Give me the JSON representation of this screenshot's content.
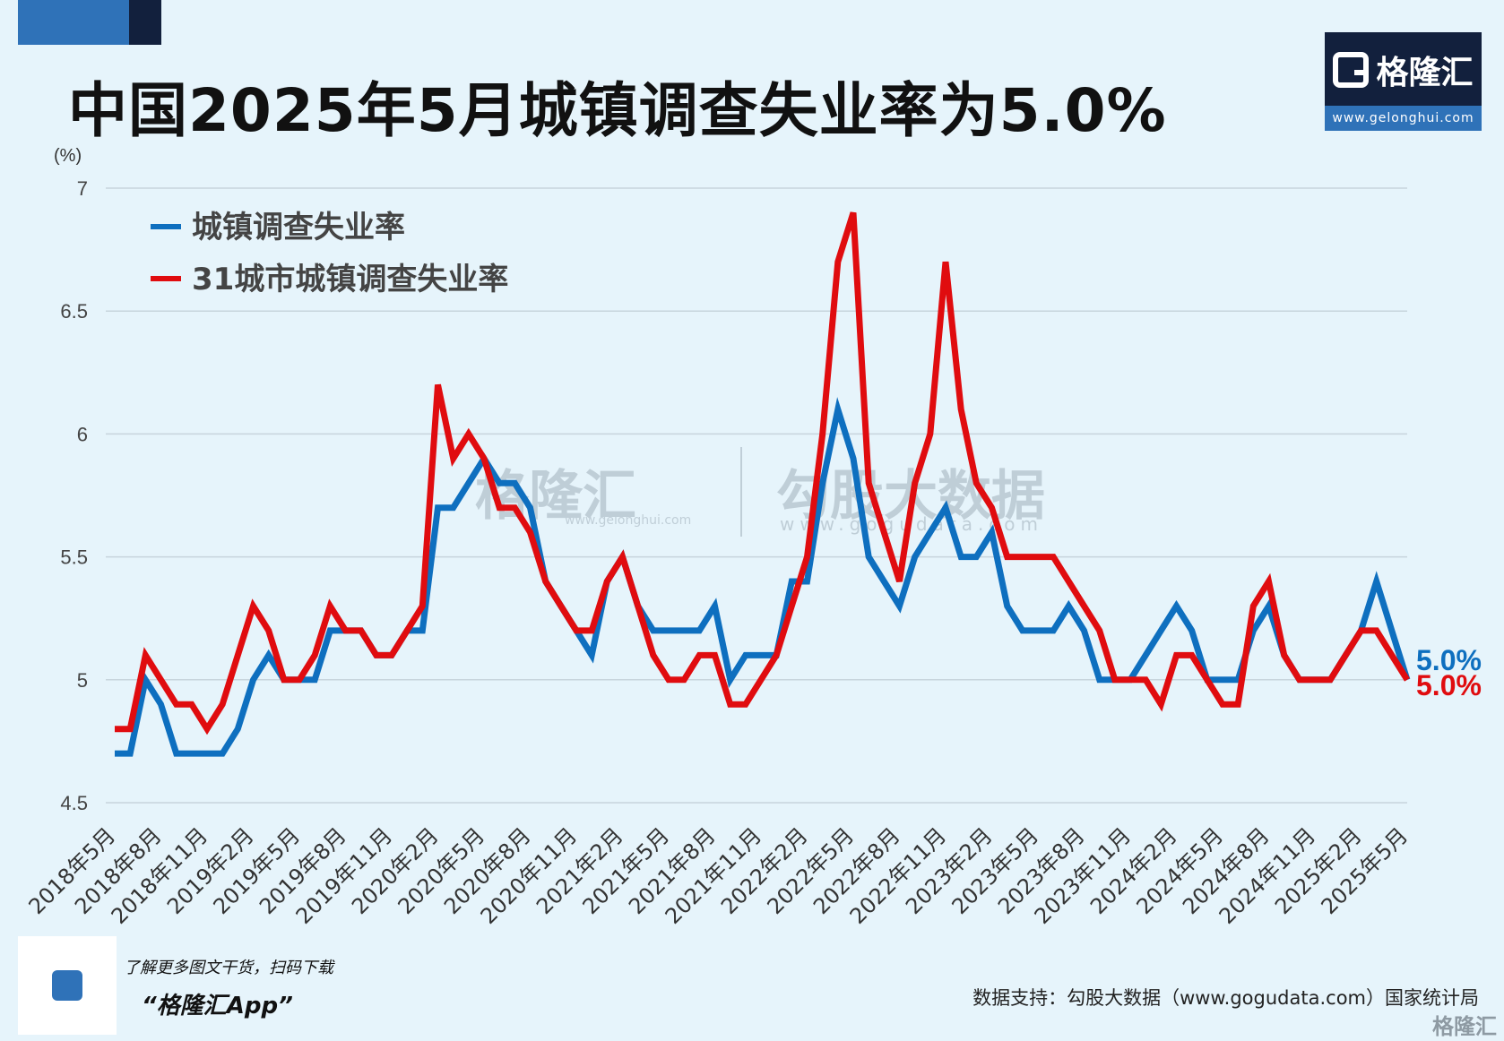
{
  "title": "中国2025年5月城镇调查失业率为5.0%",
  "logo": {
    "name": "格隆汇",
    "url": "www.gelonghui.com"
  },
  "watermark": {
    "brand_a": "格隆汇",
    "brand_a_url": "www.gelonghui.com",
    "brand_b": "勾股大数据",
    "brand_b_url": "www.gogudata.com"
  },
  "footer": {
    "tip": "了解更多图文干货，扫码下载",
    "app": "“格隆汇App”",
    "source": "数据支持：勾股大数据（www.gogudata.com）国家统计局",
    "brand": "格隆汇"
  },
  "colors": {
    "blue": "#0e6fbf",
    "red": "#e00c0f",
    "grid": "#c7d4dc",
    "background": "#e6f4fb"
  },
  "chart_data": {
    "type": "line",
    "unit_label": "(%)",
    "ylim": [
      4.5,
      7
    ],
    "yticks": [
      4.5,
      5,
      5.5,
      6,
      6.5,
      7
    ],
    "grid": true,
    "legend_position": "top-left",
    "x_tick_labels": [
      "2018年5月",
      "2018年8月",
      "2018年11月",
      "2019年2月",
      "2019年5月",
      "2019年8月",
      "2019年11月",
      "2020年2月",
      "2020年5月",
      "2020年8月",
      "2020年11月",
      "2021年2月",
      "2021年5月",
      "2021年8月",
      "2021年11月",
      "2022年2月",
      "2022年5月",
      "2022年8月",
      "2022年11月",
      "2023年2月",
      "2023年5月",
      "2023年8月",
      "2023年11月",
      "2024年2月",
      "2024年5月",
      "2024年8月",
      "2024年11月",
      "2025年2月",
      "2025年5月"
    ],
    "x": [
      "2018-05",
      "2018-06",
      "2018-07",
      "2018-08",
      "2018-09",
      "2018-10",
      "2018-11",
      "2018-12",
      "2019-01",
      "2019-02",
      "2019-03",
      "2019-04",
      "2019-05",
      "2019-06",
      "2019-07",
      "2019-08",
      "2019-09",
      "2019-10",
      "2019-11",
      "2019-12",
      "2020-01",
      "2020-02",
      "2020-03",
      "2020-04",
      "2020-05",
      "2020-06",
      "2020-07",
      "2020-08",
      "2020-09",
      "2020-10",
      "2020-11",
      "2020-12",
      "2021-01",
      "2021-02",
      "2021-03",
      "2021-04",
      "2021-05",
      "2021-06",
      "2021-07",
      "2021-08",
      "2021-09",
      "2021-10",
      "2021-11",
      "2021-12",
      "2022-01",
      "2022-02",
      "2022-03",
      "2022-04",
      "2022-05",
      "2022-06",
      "2022-07",
      "2022-08",
      "2022-09",
      "2022-10",
      "2022-11",
      "2022-12",
      "2023-01",
      "2023-02",
      "2023-03",
      "2023-04",
      "2023-05",
      "2023-06",
      "2023-07",
      "2023-08",
      "2023-09",
      "2023-10",
      "2023-11",
      "2023-12",
      "2024-01",
      "2024-02",
      "2024-03",
      "2024-04",
      "2024-05",
      "2024-06",
      "2024-07",
      "2024-08",
      "2024-09",
      "2024-10",
      "2024-11",
      "2024-12",
      "2025-01",
      "2025-02",
      "2025-03",
      "2025-04",
      "2025-05"
    ],
    "series": [
      {
        "name": "城镇调查失业率",
        "color": "#0e6fbf",
        "end_label": "5.0%",
        "values": [
          4.7,
          4.7,
          5.0,
          4.9,
          4.7,
          4.7,
          4.7,
          4.7,
          4.8,
          5.0,
          5.1,
          5.0,
          5.0,
          5.0,
          5.2,
          5.2,
          5.2,
          5.1,
          5.1,
          5.2,
          5.2,
          5.7,
          5.7,
          5.8,
          5.9,
          5.8,
          5.8,
          5.7,
          5.4,
          5.3,
          5.2,
          5.1,
          5.4,
          5.5,
          5.3,
          5.2,
          5.2,
          5.2,
          5.2,
          5.3,
          5.0,
          5.1,
          5.1,
          5.1,
          5.4,
          5.4,
          5.8,
          6.1,
          5.9,
          5.5,
          5.4,
          5.3,
          5.5,
          5.6,
          5.7,
          5.5,
          5.5,
          5.6,
          5.3,
          5.2,
          5.2,
          5.2,
          5.3,
          5.2,
          5.0,
          5.0,
          5.0,
          5.1,
          5.2,
          5.3,
          5.2,
          5.0,
          5.0,
          5.0,
          5.2,
          5.3,
          5.1,
          5.0,
          5.0,
          5.0,
          5.1,
          5.2,
          5.4,
          5.2,
          5.0
        ]
      },
      {
        "name": "31城市城镇调查失业率",
        "color": "#e00c0f",
        "end_label": "5.0%",
        "values": [
          4.8,
          4.8,
          5.1,
          5.0,
          4.9,
          4.9,
          4.8,
          4.9,
          5.1,
          5.3,
          5.2,
          5.0,
          5.0,
          5.1,
          5.3,
          5.2,
          5.2,
          5.1,
          5.1,
          5.2,
          5.3,
          6.2,
          5.9,
          6.0,
          5.9,
          5.7,
          5.7,
          5.6,
          5.4,
          5.3,
          5.2,
          5.2,
          5.4,
          5.5,
          5.3,
          5.1,
          5.0,
          5.0,
          5.1,
          5.1,
          4.9,
          4.9,
          5.0,
          5.1,
          5.3,
          5.5,
          6.0,
          6.7,
          6.9,
          5.8,
          5.6,
          5.4,
          5.8,
          6.0,
          6.7,
          6.1,
          5.8,
          5.7,
          5.5,
          5.5,
          5.5,
          5.5,
          5.4,
          5.3,
          5.2,
          5.0,
          5.0,
          5.0,
          4.9,
          5.1,
          5.1,
          5.0,
          4.9,
          4.9,
          5.3,
          5.4,
          5.1,
          5.0,
          5.0,
          5.0,
          5.1,
          5.2,
          5.2,
          5.1,
          5.0
        ]
      }
    ]
  }
}
